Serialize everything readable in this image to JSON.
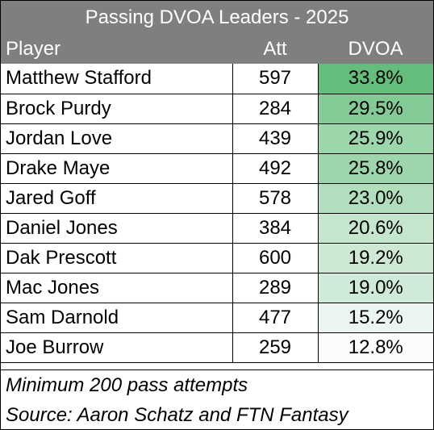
{
  "title": "Passing DVOA Leaders - 2025",
  "columns": {
    "player": "Player",
    "att": "Att",
    "dvoa": "DVOA"
  },
  "rows": [
    {
      "player": "Matthew Stafford",
      "att": "597",
      "dvoa": "33.8%",
      "shade": "#63be7b"
    },
    {
      "player": "Brock Purdy",
      "att": "284",
      "dvoa": "29.5%",
      "shade": "#82cb96"
    },
    {
      "player": "Jordan Love",
      "att": "439",
      "dvoa": "25.9%",
      "shade": "#9cd6ab"
    },
    {
      "player": "Drake Maye",
      "att": "492",
      "dvoa": "25.8%",
      "shade": "#9dd6ac"
    },
    {
      "player": "Jared Goff",
      "att": "578",
      "dvoa": "23.0%",
      "shade": "#b1dfbd"
    },
    {
      "player": "Daniel Jones",
      "att": "384",
      "dvoa": "20.6%",
      "shade": "#c3e6cc"
    },
    {
      "player": "Dak Prescott",
      "att": "600",
      "dvoa": "19.2%",
      "shade": "#cde9d4"
    },
    {
      "player": "Mac Jones",
      "att": "289",
      "dvoa": "19.0%",
      "shade": "#cfead6"
    },
    {
      "player": "Sam Darnold",
      "att": "477",
      "dvoa": "15.2%",
      "shade": "#ebf5f0"
    },
    {
      "player": "Joe Burrow",
      "att": "259",
      "dvoa": "12.8%",
      "shade": "#fcfcff"
    }
  ],
  "footer": {
    "note": "Minimum 200 pass attempts",
    "source": "Source:  Aaron Schatz and FTN Fantasy"
  }
}
